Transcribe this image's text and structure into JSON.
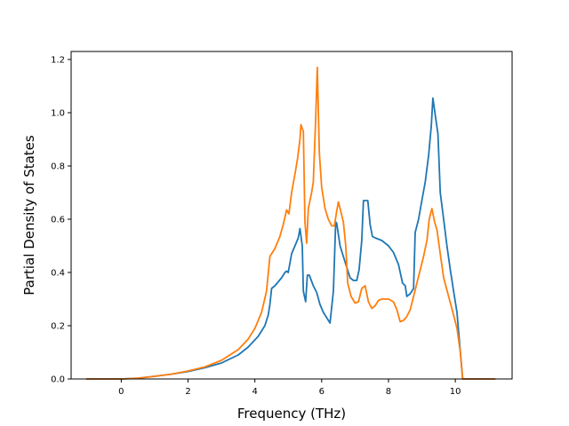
{
  "chart_data": {
    "type": "line",
    "title": "",
    "xlabel": "Frequency (THz)",
    "ylabel": "Partial Density of States",
    "xlim": [
      -1.5,
      11.7
    ],
    "ylim": [
      0.0,
      1.23
    ],
    "xticks": [
      0,
      2,
      4,
      6,
      8,
      10
    ],
    "xtick_labels": [
      "0",
      "2",
      "4",
      "6",
      "8",
      "10"
    ],
    "yticks": [
      0.0,
      0.2,
      0.4,
      0.6,
      0.8,
      1.0,
      1.2
    ],
    "ytick_labels": [
      "0.0",
      "0.2",
      "0.4",
      "0.6",
      "0.8",
      "1.0",
      "1.2"
    ],
    "grid": false,
    "legend": "none",
    "series": [
      {
        "color": "#1f77b4",
        "points": [
          [
            -1.05,
            0.0
          ],
          [
            0.0,
            0.0
          ],
          [
            0.5,
            0.003
          ],
          [
            1.0,
            0.01
          ],
          [
            1.5,
            0.018
          ],
          [
            2.0,
            0.028
          ],
          [
            2.5,
            0.042
          ],
          [
            3.0,
            0.06
          ],
          [
            3.5,
            0.09
          ],
          [
            3.8,
            0.12
          ],
          [
            4.1,
            0.16
          ],
          [
            4.3,
            0.2
          ],
          [
            4.4,
            0.24
          ],
          [
            4.45,
            0.28
          ],
          [
            4.5,
            0.34
          ],
          [
            4.6,
            0.35
          ],
          [
            4.7,
            0.365
          ],
          [
            4.8,
            0.38
          ],
          [
            4.9,
            0.4
          ],
          [
            4.95,
            0.405
          ],
          [
            5.0,
            0.4
          ],
          [
            5.1,
            0.47
          ],
          [
            5.2,
            0.5
          ],
          [
            5.3,
            0.53
          ],
          [
            5.35,
            0.565
          ],
          [
            5.42,
            0.5
          ],
          [
            5.45,
            0.33
          ],
          [
            5.52,
            0.29
          ],
          [
            5.57,
            0.39
          ],
          [
            5.63,
            0.39
          ],
          [
            5.75,
            0.35
          ],
          [
            5.85,
            0.325
          ],
          [
            5.95,
            0.28
          ],
          [
            6.05,
            0.25
          ],
          [
            6.15,
            0.23
          ],
          [
            6.25,
            0.21
          ],
          [
            6.35,
            0.33
          ],
          [
            6.42,
            0.59
          ],
          [
            6.45,
            0.585
          ],
          [
            6.55,
            0.5
          ],
          [
            6.65,
            0.46
          ],
          [
            6.75,
            0.42
          ],
          [
            6.85,
            0.38
          ],
          [
            6.95,
            0.37
          ],
          [
            7.05,
            0.37
          ],
          [
            7.12,
            0.41
          ],
          [
            7.2,
            0.52
          ],
          [
            7.25,
            0.67
          ],
          [
            7.38,
            0.67
          ],
          [
            7.45,
            0.58
          ],
          [
            7.52,
            0.535
          ],
          [
            7.6,
            0.53
          ],
          [
            7.8,
            0.52
          ],
          [
            8.0,
            0.5
          ],
          [
            8.15,
            0.475
          ],
          [
            8.3,
            0.43
          ],
          [
            8.42,
            0.36
          ],
          [
            8.5,
            0.35
          ],
          [
            8.55,
            0.31
          ],
          [
            8.65,
            0.32
          ],
          [
            8.75,
            0.34
          ],
          [
            8.8,
            0.55
          ],
          [
            8.9,
            0.6
          ],
          [
            9.0,
            0.67
          ],
          [
            9.1,
            0.74
          ],
          [
            9.2,
            0.84
          ],
          [
            9.28,
            0.95
          ],
          [
            9.33,
            1.055
          ],
          [
            9.4,
            0.99
          ],
          [
            9.48,
            0.92
          ],
          [
            9.55,
            0.7
          ],
          [
            9.65,
            0.6
          ],
          [
            9.75,
            0.5
          ],
          [
            9.85,
            0.41
          ],
          [
            9.95,
            0.33
          ],
          [
            10.05,
            0.25
          ],
          [
            10.15,
            0.1
          ],
          [
            10.22,
            0.0
          ],
          [
            11.2,
            0.0
          ]
        ]
      },
      {
        "color": "#ff7f0e",
        "points": [
          [
            -1.05,
            0.0
          ],
          [
            0.0,
            0.0
          ],
          [
            0.5,
            0.003
          ],
          [
            1.0,
            0.01
          ],
          [
            1.5,
            0.018
          ],
          [
            2.0,
            0.03
          ],
          [
            2.5,
            0.045
          ],
          [
            3.0,
            0.07
          ],
          [
            3.5,
            0.11
          ],
          [
            3.8,
            0.15
          ],
          [
            4.0,
            0.19
          ],
          [
            4.2,
            0.25
          ],
          [
            4.35,
            0.33
          ],
          [
            4.45,
            0.46
          ],
          [
            4.6,
            0.49
          ],
          [
            4.75,
            0.535
          ],
          [
            4.85,
            0.58
          ],
          [
            4.95,
            0.635
          ],
          [
            5.02,
            0.62
          ],
          [
            5.1,
            0.7
          ],
          [
            5.2,
            0.77
          ],
          [
            5.28,
            0.83
          ],
          [
            5.35,
            0.9
          ],
          [
            5.38,
            0.955
          ],
          [
            5.45,
            0.93
          ],
          [
            5.5,
            0.59
          ],
          [
            5.55,
            0.51
          ],
          [
            5.6,
            0.64
          ],
          [
            5.7,
            0.7
          ],
          [
            5.75,
            0.74
          ],
          [
            5.82,
            0.98
          ],
          [
            5.87,
            1.17
          ],
          [
            5.93,
            0.85
          ],
          [
            6.0,
            0.72
          ],
          [
            6.1,
            0.64
          ],
          [
            6.2,
            0.6
          ],
          [
            6.3,
            0.575
          ],
          [
            6.38,
            0.575
          ],
          [
            6.45,
            0.63
          ],
          [
            6.5,
            0.665
          ],
          [
            6.55,
            0.64
          ],
          [
            6.65,
            0.59
          ],
          [
            6.72,
            0.5
          ],
          [
            6.78,
            0.36
          ],
          [
            6.88,
            0.31
          ],
          [
            7.0,
            0.285
          ],
          [
            7.1,
            0.29
          ],
          [
            7.2,
            0.34
          ],
          [
            7.3,
            0.35
          ],
          [
            7.4,
            0.29
          ],
          [
            7.5,
            0.265
          ],
          [
            7.6,
            0.275
          ],
          [
            7.7,
            0.295
          ],
          [
            7.8,
            0.3
          ],
          [
            8.0,
            0.3
          ],
          [
            8.15,
            0.29
          ],
          [
            8.25,
            0.26
          ],
          [
            8.35,
            0.215
          ],
          [
            8.45,
            0.22
          ],
          [
            8.55,
            0.235
          ],
          [
            8.65,
            0.26
          ],
          [
            8.75,
            0.31
          ],
          [
            8.85,
            0.36
          ],
          [
            8.95,
            0.41
          ],
          [
            9.05,
            0.46
          ],
          [
            9.15,
            0.52
          ],
          [
            9.22,
            0.6
          ],
          [
            9.3,
            0.64
          ],
          [
            9.38,
            0.59
          ],
          [
            9.45,
            0.56
          ],
          [
            9.55,
            0.47
          ],
          [
            9.65,
            0.38
          ],
          [
            9.8,
            0.31
          ],
          [
            9.95,
            0.24
          ],
          [
            10.05,
            0.19
          ],
          [
            10.15,
            0.1
          ],
          [
            10.22,
            0.0
          ],
          [
            11.2,
            0.0
          ]
        ]
      }
    ]
  }
}
